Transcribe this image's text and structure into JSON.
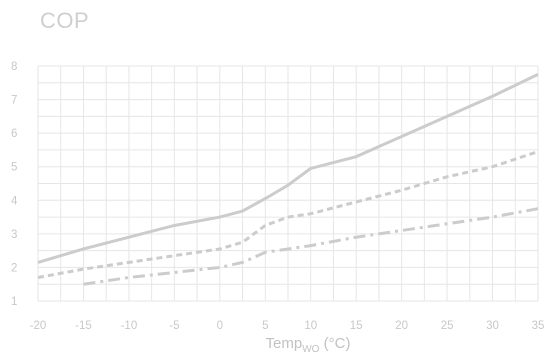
{
  "chart_data": {
    "type": "line",
    "title": "COP",
    "xlabel": {
      "main": "Temp",
      "sub": "WO",
      "unit": " (°C)"
    },
    "ylabel": "",
    "xlim": [
      -20,
      35
    ],
    "ylim": [
      1,
      8
    ],
    "x_ticks": [
      -20,
      -15,
      -10,
      -5,
      0,
      5,
      10,
      15,
      20,
      25,
      30,
      35
    ],
    "y_ticks": [
      1,
      2,
      3,
      4,
      5,
      6,
      7,
      8
    ],
    "grid": true,
    "series": [
      {
        "style": "solid",
        "color": "#cccccc",
        "points": [
          [
            -20,
            2.15
          ],
          [
            -15,
            2.55
          ],
          [
            -10,
            2.9
          ],
          [
            -5,
            3.25
          ],
          [
            0,
            3.5
          ],
          [
            2.5,
            3.68
          ],
          [
            5,
            4.05
          ],
          [
            7.5,
            4.45
          ],
          [
            10,
            4.95
          ],
          [
            15,
            5.3
          ],
          [
            20,
            5.9
          ],
          [
            25,
            6.5
          ],
          [
            30,
            7.1
          ],
          [
            35,
            7.75
          ]
        ]
      },
      {
        "style": "dashed",
        "color": "#cccccc",
        "points": [
          [
            -20,
            1.7
          ],
          [
            -15,
            1.95
          ],
          [
            -10,
            2.15
          ],
          [
            -5,
            2.35
          ],
          [
            0,
            2.55
          ],
          [
            2.5,
            2.75
          ],
          [
            5,
            3.25
          ],
          [
            7.5,
            3.5
          ],
          [
            10,
            3.6
          ],
          [
            15,
            3.95
          ],
          [
            20,
            4.3
          ],
          [
            25,
            4.7
          ],
          [
            30,
            5.0
          ],
          [
            35,
            5.45
          ]
        ]
      },
      {
        "style": "dashdot",
        "color": "#cccccc",
        "points": [
          [
            -15,
            1.5
          ],
          [
            -10,
            1.7
          ],
          [
            -5,
            1.85
          ],
          [
            0,
            2.0
          ],
          [
            2.5,
            2.15
          ],
          [
            5,
            2.45
          ],
          [
            10,
            2.65
          ],
          [
            15,
            2.9
          ],
          [
            20,
            3.1
          ],
          [
            25,
            3.3
          ],
          [
            30,
            3.5
          ],
          [
            35,
            3.75
          ]
        ]
      }
    ]
  }
}
